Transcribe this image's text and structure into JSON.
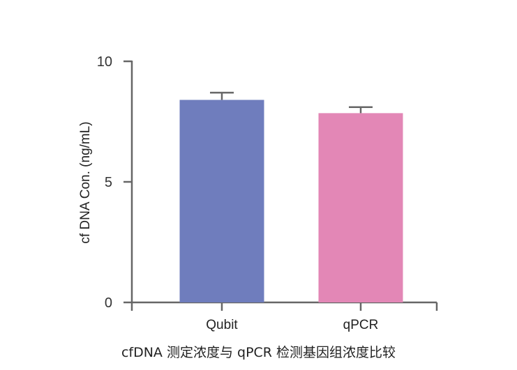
{
  "chart_data": {
    "type": "bar",
    "categories": [
      "Qubit",
      "qPCR"
    ],
    "values": [
      8.4,
      7.85
    ],
    "errors": [
      0.3,
      0.25
    ],
    "colors": [
      "#6f7dbd",
      "#e387b6"
    ],
    "ylabel": "cf DNA Con. (ng/mL)",
    "xlabel": "",
    "ylim": [
      0,
      10
    ],
    "yticks": [
      0,
      5,
      10
    ],
    "grid": false,
    "legend": "none",
    "caption": "cfDNA 测定浓度与 qPCR 检测基因组浓度比较"
  }
}
